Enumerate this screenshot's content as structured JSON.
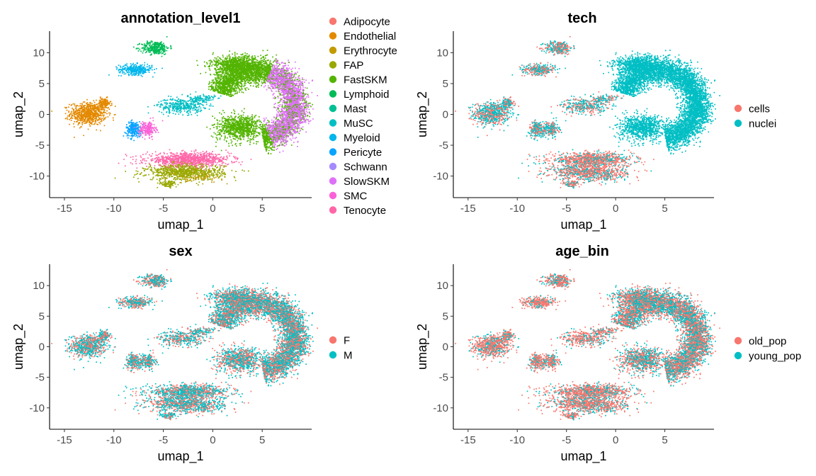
{
  "chart_data": [
    {
      "type": "scatter",
      "title": "annotation_level1",
      "xlabel": "umap_1",
      "ylabel": "umap_2",
      "xlim": [
        -16.5,
        10
      ],
      "ylim": [
        -13.5,
        13.5
      ],
      "xticks": [
        -15,
        -10,
        -5,
        0,
        5
      ],
      "yticks": [
        -10,
        -5,
        0,
        5,
        10
      ],
      "legend_position": "right",
      "grid": false,
      "series": [
        {
          "name": "Adipocyte",
          "color": "#F8766D"
        },
        {
          "name": "Endothelial",
          "color": "#E38900"
        },
        {
          "name": "Erythrocyte",
          "color": "#C49A00"
        },
        {
          "name": "FAP",
          "color": "#99A800"
        },
        {
          "name": "FastSKM",
          "color": "#53B400"
        },
        {
          "name": "Lymphoid",
          "color": "#00BC56"
        },
        {
          "name": "Mast",
          "color": "#00C094"
        },
        {
          "name": "MuSC",
          "color": "#00BFC4"
        },
        {
          "name": "Myeloid",
          "color": "#00B6EB"
        },
        {
          "name": "Pericyte",
          "color": "#06A4FF"
        },
        {
          "name": "Schwann",
          "color": "#A58AFF"
        },
        {
          "name": "SlowSKM",
          "color": "#DF70F8"
        },
        {
          "name": "SMC",
          "color": "#FB61D7"
        },
        {
          "name": "Tenocyte",
          "color": "#FF66A8"
        }
      ],
      "clusters": [
        {
          "cell_type": "Endothelial",
          "x": -12.5,
          "y": 0.2,
          "spread": [
            1.4,
            1.4
          ]
        },
        {
          "cell_type": "Lymphoid",
          "x": -5.8,
          "y": 10.8,
          "spread": [
            1.2,
            0.8
          ]
        },
        {
          "cell_type": "Myeloid",
          "x": -7.8,
          "y": 7.3,
          "spread": [
            1.3,
            0.7
          ]
        },
        {
          "cell_type": "MuSC",
          "x": -3.5,
          "y": 1.5,
          "spread": [
            1.8,
            1.3
          ]
        },
        {
          "cell_type": "Pericyte",
          "x": -8.0,
          "y": -2.5,
          "spread": [
            0.6,
            1.0
          ]
        },
        {
          "cell_type": "SMC",
          "x": -6.5,
          "y": -2.5,
          "spread": [
            0.6,
            1.0
          ]
        },
        {
          "cell_type": "FAP",
          "x": -2.5,
          "y": -9.5,
          "spread": [
            3.0,
            1.3
          ]
        },
        {
          "cell_type": "Tenocyte",
          "x": -2.5,
          "y": -7.5,
          "spread": [
            3.0,
            1.0
          ]
        },
        {
          "cell_type": "FastSKM",
          "x": 3.0,
          "y": 4.0,
          "spread": [
            5.0,
            5.0
          ]
        },
        {
          "cell_type": "SlowSKM",
          "x": 6.0,
          "y": 2.0,
          "spread": [
            2.5,
            4.5
          ]
        }
      ]
    },
    {
      "type": "scatter",
      "title": "tech",
      "xlabel": "umap_1",
      "ylabel": "umap_2",
      "xlim": [
        -16.5,
        10
      ],
      "ylim": [
        -13.5,
        13.5
      ],
      "xticks": [
        -15,
        -10,
        -5,
        0,
        5
      ],
      "yticks": [
        -10,
        -5,
        0,
        5,
        10
      ],
      "legend_position": "right",
      "grid": false,
      "series": [
        {
          "name": "cells",
          "color": "#F8766D"
        },
        {
          "name": "nuclei",
          "color": "#00BFC4"
        }
      ]
    },
    {
      "type": "scatter",
      "title": "sex",
      "xlabel": "umap_1",
      "ylabel": "umap_2",
      "xlim": [
        -16.5,
        10
      ],
      "ylim": [
        -13.5,
        13.5
      ],
      "xticks": [
        -15,
        -10,
        -5,
        0,
        5
      ],
      "yticks": [
        -10,
        -5,
        0,
        5,
        10
      ],
      "legend_position": "right",
      "grid": false,
      "series": [
        {
          "name": "F",
          "color": "#F8766D"
        },
        {
          "name": "M",
          "color": "#00BFC4"
        }
      ]
    },
    {
      "type": "scatter",
      "title": "age_bin",
      "xlabel": "umap_1",
      "ylabel": "umap_2",
      "xlim": [
        -16.5,
        10
      ],
      "ylim": [
        -13.5,
        13.5
      ],
      "xticks": [
        -15,
        -10,
        -5,
        0,
        5
      ],
      "yticks": [
        -10,
        -5,
        0,
        5,
        10
      ],
      "legend_position": "right",
      "grid": false,
      "series": [
        {
          "name": "old_pop",
          "color": "#F8766D"
        },
        {
          "name": "young_pop",
          "color": "#00BFC4"
        }
      ]
    }
  ]
}
